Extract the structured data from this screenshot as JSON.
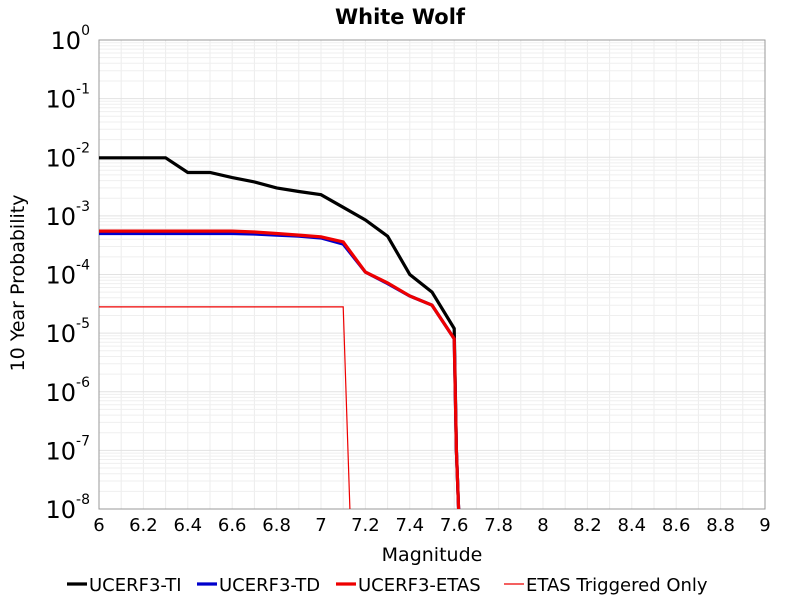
{
  "chart_data": {
    "type": "line",
    "title": "White Wolf",
    "xlabel": "Magnitude",
    "ylabel": "10 Year Probability",
    "xlim": [
      6,
      9
    ],
    "ylim": [
      1e-08,
      1
    ],
    "yscale": "log",
    "grid": true,
    "legend_position": "bottom",
    "x_ticks": [
      "6",
      "6.2",
      "6.4",
      "6.6",
      "6.8",
      "7",
      "7.2",
      "7.4",
      "7.6",
      "7.8",
      "8",
      "8.2",
      "8.4",
      "8.6",
      "8.8",
      "9"
    ],
    "y_ticks": [
      {
        "base": "10",
        "exp": "0"
      },
      {
        "base": "10",
        "exp": "-1"
      },
      {
        "base": "10",
        "exp": "-2"
      },
      {
        "base": "10",
        "exp": "-3"
      },
      {
        "base": "10",
        "exp": "-4"
      },
      {
        "base": "10",
        "exp": "-5"
      },
      {
        "base": "10",
        "exp": "-6"
      },
      {
        "base": "10",
        "exp": "-7"
      },
      {
        "base": "10",
        "exp": "-8"
      }
    ],
    "series": [
      {
        "name": "UCERF3-TI",
        "color": "#000000",
        "style": "thick",
        "x": [
          6.0,
          6.1,
          6.2,
          6.3,
          6.4,
          6.5,
          6.6,
          6.7,
          6.8,
          6.9,
          7.0,
          7.1,
          7.2,
          7.3,
          7.4,
          7.5,
          7.6,
          7.61,
          7.62
        ],
        "y": [
          0.0098,
          0.0098,
          0.0098,
          0.0098,
          0.0055,
          0.0055,
          0.0045,
          0.0038,
          0.003,
          0.0026,
          0.0023,
          0.0014,
          0.00085,
          0.00045,
          0.0001,
          5e-05,
          1.2e-05,
          1e-07,
          1e-08
        ]
      },
      {
        "name": "UCERF3-TD",
        "color": "#0000cc",
        "style": "thick",
        "x": [
          6.0,
          6.1,
          6.2,
          6.3,
          6.4,
          6.5,
          6.6,
          6.7,
          6.8,
          6.9,
          7.0,
          7.1,
          7.2,
          7.3,
          7.4,
          7.5,
          7.6,
          7.61,
          7.62
        ],
        "y": [
          0.0005,
          0.0005,
          0.0005,
          0.0005,
          0.0005,
          0.0005,
          0.0005,
          0.00049,
          0.00047,
          0.00045,
          0.00042,
          0.00033,
          0.00011,
          7e-05,
          4.3e-05,
          3e-05,
          8e-06,
          1e-07,
          1e-08
        ]
      },
      {
        "name": "UCERF3-ETAS",
        "color": "#ee0000",
        "style": "thick",
        "x": [
          6.0,
          6.1,
          6.2,
          6.3,
          6.4,
          6.5,
          6.6,
          6.7,
          6.8,
          6.9,
          7.0,
          7.1,
          7.2,
          7.3,
          7.4,
          7.5,
          7.6,
          7.61,
          7.62
        ],
        "y": [
          0.00055,
          0.00055,
          0.00055,
          0.00055,
          0.00055,
          0.00055,
          0.00055,
          0.00053,
          0.0005,
          0.00047,
          0.00044,
          0.00036,
          0.00011,
          7.2e-05,
          4.3e-05,
          3e-05,
          8e-06,
          1e-07,
          1e-08
        ]
      },
      {
        "name": "ETAS Triggered Only",
        "color": "#ee0000",
        "style": "thin",
        "x": [
          6.0,
          6.5,
          7.0,
          7.1,
          7.13
        ],
        "y": [
          2.8e-05,
          2.8e-05,
          2.8e-05,
          2.8e-05,
          1e-08
        ]
      }
    ]
  }
}
